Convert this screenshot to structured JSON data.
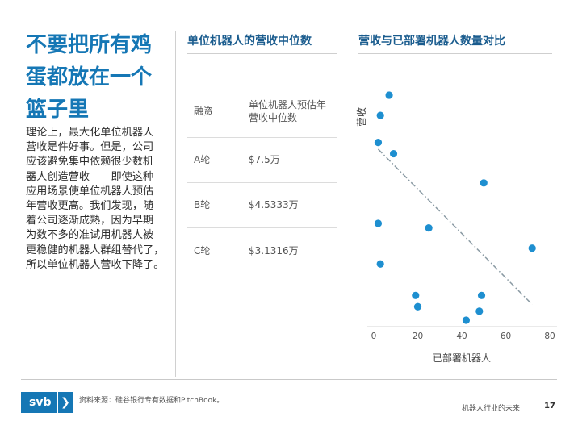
{
  "left": {
    "title_lines": [
      "不要把所有鸡",
      "蛋都放在一个",
      "篮子里"
    ],
    "body_lines": [
      "理论上，最大化单位机器人",
      "营收是件好事。但是，公司",
      "应该避免集中依赖很少数机",
      "器人创造营收——即使这种",
      "应用场景使单位机器人预估",
      "年营收更高。我们发现，随",
      "着公司逐渐成熟，因为早期",
      "为数不多的准试用机器人被",
      "更稳健的机器人群组替代了，",
      "所以单位机器人营收下降了。"
    ]
  },
  "table": {
    "heading": "单位机器人的营收中位数",
    "header": {
      "col1": "融资",
      "col2_line1": "单位机器人预估年",
      "col2_line2": "营收中位数"
    },
    "rows": [
      {
        "round": "A轮",
        "value": "$7.5万"
      },
      {
        "round": "B轮",
        "value": "$4.5333万"
      },
      {
        "round": "C轮",
        "value": "$3.1316万"
      }
    ]
  },
  "chart_data": {
    "type": "scatter",
    "title": "营收与已部署机器人数量对比",
    "xlabel": "已部署机器人",
    "ylabel": "营收",
    "xlim": [
      0,
      80
    ],
    "x_ticks": [
      "0",
      "20",
      "40",
      "60",
      "80"
    ],
    "y_ticks": [],
    "grid": false,
    "trendline": {
      "style": "dash-dot",
      "color": "#8a9aa3",
      "x": [
        2,
        72
      ],
      "y": [
        0.76,
        0.07
      ]
    },
    "points_color": "#1e8fd0",
    "points": [
      {
        "x": 7,
        "y": 1.0
      },
      {
        "x": 3,
        "y": 0.91
      },
      {
        "x": 2,
        "y": 0.79
      },
      {
        "x": 9,
        "y": 0.74
      },
      {
        "x": 50,
        "y": 0.61
      },
      {
        "x": 2,
        "y": 0.43
      },
      {
        "x": 25,
        "y": 0.41
      },
      {
        "x": 72,
        "y": 0.32
      },
      {
        "x": 3,
        "y": 0.25
      },
      {
        "x": 19,
        "y": 0.11
      },
      {
        "x": 49,
        "y": 0.11
      },
      {
        "x": 20,
        "y": 0.06
      },
      {
        "x": 48,
        "y": 0.04
      },
      {
        "x": 42,
        "y": 0.0
      }
    ]
  },
  "footer": {
    "logo_text": "svb",
    "logo_chevron": "❯",
    "source": "资料来源：硅谷银行专有数据和PitchBook。",
    "report_title": "机器人行业的未来",
    "page_number": "17"
  }
}
